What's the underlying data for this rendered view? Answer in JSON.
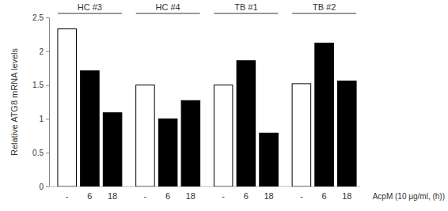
{
  "chart_data": {
    "type": "bar",
    "y_label": "Relative ATG8 mRNA levels",
    "x_label": "AcpM (10 μg/ml, (h))",
    "groups": [
      "HC #3",
      "HC #4",
      "TB #1",
      "TB #2"
    ],
    "categories": [
      "-",
      "6",
      "18",
      "-",
      "6",
      "18",
      "-",
      "6",
      "18",
      "-",
      "6",
      "18"
    ],
    "values": [
      2.33,
      1.71,
      1.09,
      1.5,
      1.0,
      1.27,
      1.5,
      1.86,
      0.79,
      1.52,
      2.12,
      1.56
    ],
    "colors": [
      "#ffffff",
      "#000000",
      "#000000",
      "#ffffff",
      "#000000",
      "#000000",
      "#ffffff",
      "#000000",
      "#000000",
      "#ffffff",
      "#000000",
      "#000000"
    ],
    "ylim": [
      0,
      2.5
    ],
    "yticks": [
      0,
      0.5,
      1,
      1.5,
      2,
      2.5
    ],
    "grid": false
  }
}
